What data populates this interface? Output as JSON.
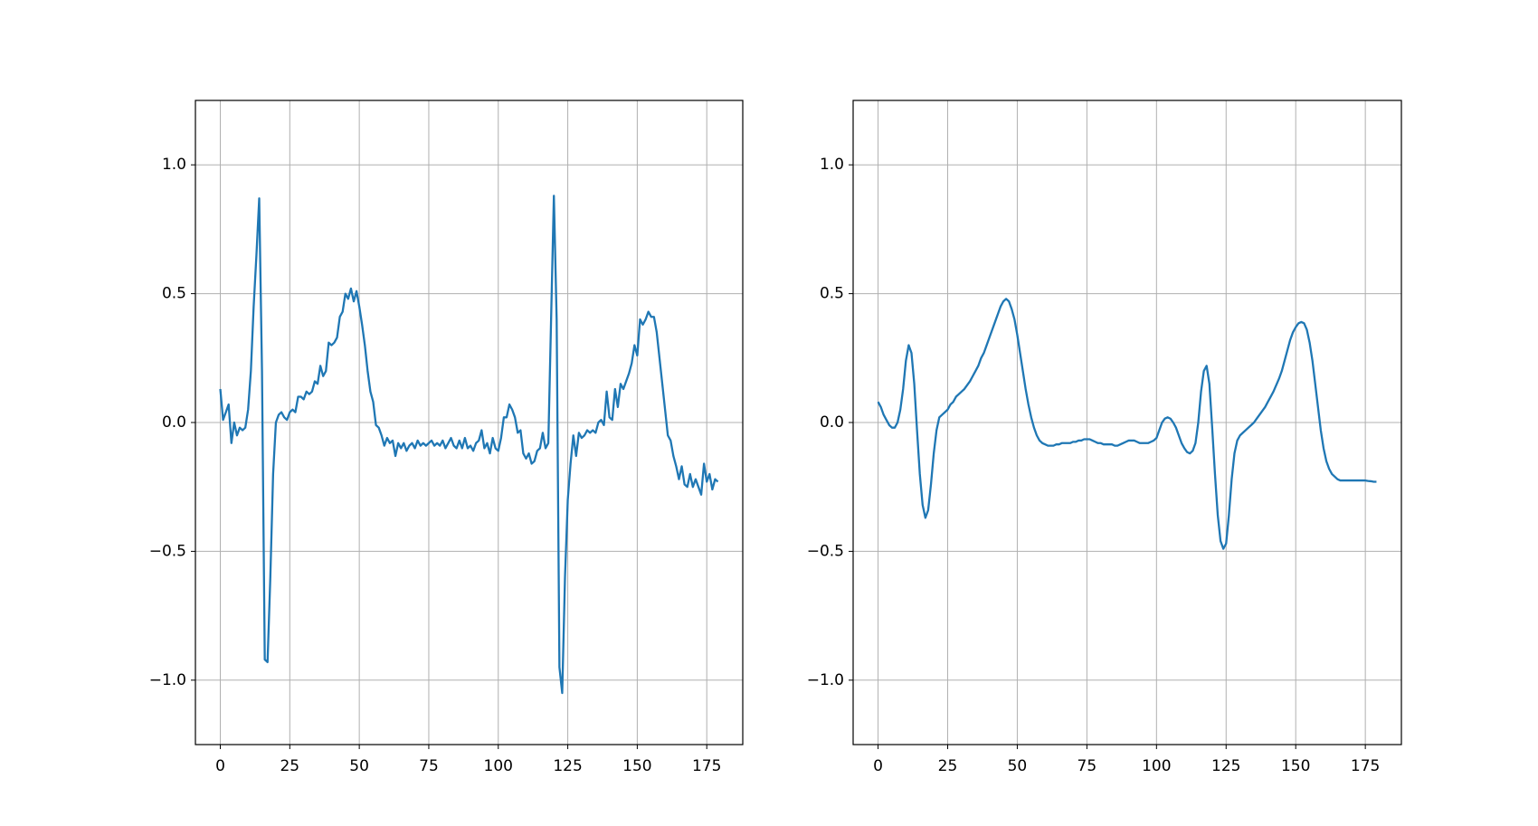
{
  "chart_data": [
    {
      "type": "line",
      "grid": true,
      "xlim": [
        -8.95,
        187.95
      ],
      "ylim": [
        -1.25,
        1.25
      ],
      "xticks": [
        0,
        25,
        50,
        75,
        100,
        125,
        150,
        175
      ],
      "yticks": [
        {
          "value": -1.0,
          "label": "−1.0"
        },
        {
          "value": -0.5,
          "label": "−0.5"
        },
        {
          "value": 0.0,
          "label": "0.0"
        },
        0.5,
        {
          "value": 1.0,
          "label": "1.0"
        }
      ],
      "x": [
        0,
        1,
        2,
        3,
        4,
        5,
        6,
        7,
        8,
        9,
        10,
        11,
        12,
        13,
        14,
        15,
        16,
        17,
        18,
        19,
        20,
        21,
        22,
        23,
        24,
        25,
        26,
        27,
        28,
        29,
        30,
        31,
        32,
        33,
        34,
        35,
        36,
        37,
        38,
        39,
        40,
        41,
        42,
        43,
        44,
        45,
        46,
        47,
        48,
        49,
        50,
        51,
        52,
        53,
        54,
        55,
        56,
        57,
        58,
        59,
        60,
        61,
        62,
        63,
        64,
        65,
        66,
        67,
        68,
        69,
        70,
        71,
        72,
        73,
        74,
        75,
        76,
        77,
        78,
        79,
        80,
        81,
        82,
        83,
        84,
        85,
        86,
        87,
        88,
        89,
        90,
        91,
        92,
        93,
        94,
        95,
        96,
        97,
        98,
        99,
        100,
        101,
        102,
        103,
        104,
        105,
        106,
        107,
        108,
        109,
        110,
        111,
        112,
        113,
        114,
        115,
        116,
        117,
        118,
        119,
        120,
        121,
        122,
        123,
        124,
        125,
        126,
        127,
        128,
        129,
        130,
        131,
        132,
        133,
        134,
        135,
        136,
        137,
        138,
        139,
        140,
        141,
        142,
        143,
        144,
        145,
        146,
        147,
        148,
        149,
        150,
        151,
        152,
        153,
        154,
        155,
        156,
        157,
        158,
        159,
        160,
        161,
        162,
        163,
        164,
        165,
        166,
        167,
        168,
        169,
        170,
        171,
        172,
        173,
        174,
        175,
        176,
        177,
        178,
        179
      ],
      "series": [
        {
          "color": "#1f77b4",
          "values": [
            0.13,
            0.01,
            0.04,
            0.07,
            -0.08,
            0.0,
            -0.05,
            -0.02,
            -0.03,
            -0.02,
            0.05,
            0.2,
            0.45,
            0.65,
            0.87,
            0.2,
            -0.92,
            -0.93,
            -0.6,
            -0.2,
            0.0,
            0.03,
            0.04,
            0.02,
            0.01,
            0.04,
            0.05,
            0.04,
            0.1,
            0.1,
            0.09,
            0.12,
            0.11,
            0.12,
            0.16,
            0.15,
            0.22,
            0.18,
            0.2,
            0.31,
            0.3,
            0.31,
            0.33,
            0.41,
            0.43,
            0.5,
            0.48,
            0.52,
            0.47,
            0.51,
            0.45,
            0.38,
            0.3,
            0.2,
            0.12,
            0.08,
            -0.01,
            -0.02,
            -0.05,
            -0.09,
            -0.06,
            -0.08,
            -0.07,
            -0.13,
            -0.08,
            -0.1,
            -0.08,
            -0.11,
            -0.09,
            -0.08,
            -0.1,
            -0.07,
            -0.09,
            -0.08,
            -0.09,
            -0.08,
            -0.07,
            -0.09,
            -0.08,
            -0.09,
            -0.07,
            -0.1,
            -0.08,
            -0.06,
            -0.09,
            -0.1,
            -0.07,
            -0.1,
            -0.06,
            -0.1,
            -0.09,
            -0.11,
            -0.08,
            -0.07,
            -0.03,
            -0.1,
            -0.08,
            -0.12,
            -0.06,
            -0.1,
            -0.11,
            -0.06,
            0.02,
            0.02,
            0.07,
            0.05,
            0.02,
            -0.04,
            -0.03,
            -0.12,
            -0.14,
            -0.12,
            -0.16,
            -0.15,
            -0.11,
            -0.1,
            -0.04,
            -0.1,
            -0.08,
            0.4,
            0.88,
            0.4,
            -0.95,
            -1.05,
            -0.6,
            -0.3,
            -0.16,
            -0.05,
            -0.13,
            -0.04,
            -0.06,
            -0.05,
            -0.03,
            -0.04,
            -0.03,
            -0.04,
            0.0,
            0.01,
            -0.01,
            0.12,
            0.02,
            0.01,
            0.13,
            0.06,
            0.15,
            0.13,
            0.16,
            0.19,
            0.23,
            0.3,
            0.26,
            0.4,
            0.38,
            0.4,
            0.43,
            0.41,
            0.41,
            0.35,
            0.25,
            0.15,
            0.05,
            -0.05,
            -0.07,
            -0.13,
            -0.17,
            -0.22,
            -0.17,
            -0.24,
            -0.25,
            -0.2,
            -0.25,
            -0.22,
            -0.25,
            -0.28,
            -0.16,
            -0.23,
            -0.2,
            -0.26,
            -0.22,
            -0.23
          ]
        }
      ]
    },
    {
      "type": "line",
      "grid": true,
      "xlim": [
        -8.95,
        187.95
      ],
      "ylim": [
        -1.25,
        1.25
      ],
      "xticks": [
        0,
        25,
        50,
        75,
        100,
        125,
        150,
        175
      ],
      "yticks": [
        {
          "value": -1.0,
          "label": "−1.0"
        },
        {
          "value": -0.5,
          "label": "−0.5"
        },
        {
          "value": 0.0,
          "label": "0.0"
        },
        0.5,
        {
          "value": 1.0,
          "label": "1.0"
        }
      ],
      "x": [
        0,
        1,
        2,
        3,
        4,
        5,
        6,
        7,
        8,
        9,
        10,
        11,
        12,
        13,
        14,
        15,
        16,
        17,
        18,
        19,
        20,
        21,
        22,
        23,
        24,
        25,
        26,
        27,
        28,
        29,
        30,
        31,
        32,
        33,
        34,
        35,
        36,
        37,
        38,
        39,
        40,
        41,
        42,
        43,
        44,
        45,
        46,
        47,
        48,
        49,
        50,
        51,
        52,
        53,
        54,
        55,
        56,
        57,
        58,
        59,
        60,
        61,
        62,
        63,
        64,
        65,
        66,
        67,
        68,
        69,
        70,
        71,
        72,
        73,
        74,
        75,
        76,
        77,
        78,
        79,
        80,
        81,
        82,
        83,
        84,
        85,
        86,
        87,
        88,
        89,
        90,
        91,
        92,
        93,
        94,
        95,
        96,
        97,
        98,
        99,
        100,
        101,
        102,
        103,
        104,
        105,
        106,
        107,
        108,
        109,
        110,
        111,
        112,
        113,
        114,
        115,
        116,
        117,
        118,
        119,
        120,
        121,
        122,
        123,
        124,
        125,
        126,
        127,
        128,
        129,
        130,
        131,
        132,
        133,
        134,
        135,
        136,
        137,
        138,
        139,
        140,
        141,
        142,
        143,
        144,
        145,
        146,
        147,
        148,
        149,
        150,
        151,
        152,
        153,
        154,
        155,
        156,
        157,
        158,
        159,
        160,
        161,
        162,
        163,
        164,
        165,
        166,
        167,
        168,
        169,
        170,
        171,
        172,
        173,
        174,
        175,
        176,
        177,
        178,
        179
      ],
      "series": [
        {
          "color": "#1f77b4",
          "values": [
            0.08,
            0.06,
            0.03,
            0.01,
            -0.01,
            -0.02,
            -0.02,
            0.0,
            0.05,
            0.13,
            0.24,
            0.3,
            0.27,
            0.15,
            -0.03,
            -0.2,
            -0.32,
            -0.37,
            -0.34,
            -0.24,
            -0.12,
            -0.03,
            0.02,
            0.03,
            0.04,
            0.05,
            0.07,
            0.08,
            0.1,
            0.11,
            0.12,
            0.13,
            0.145,
            0.16,
            0.18,
            0.2,
            0.22,
            0.25,
            0.27,
            0.3,
            0.33,
            0.36,
            0.39,
            0.42,
            0.45,
            0.47,
            0.48,
            0.47,
            0.44,
            0.4,
            0.34,
            0.27,
            0.2,
            0.13,
            0.07,
            0.02,
            -0.02,
            -0.05,
            -0.07,
            -0.08,
            -0.085,
            -0.09,
            -0.09,
            -0.09,
            -0.085,
            -0.085,
            -0.08,
            -0.08,
            -0.08,
            -0.08,
            -0.075,
            -0.075,
            -0.07,
            -0.07,
            -0.065,
            -0.065,
            -0.065,
            -0.07,
            -0.075,
            -0.08,
            -0.08,
            -0.085,
            -0.085,
            -0.085,
            -0.085,
            -0.09,
            -0.09,
            -0.085,
            -0.08,
            -0.075,
            -0.07,
            -0.07,
            -0.07,
            -0.075,
            -0.08,
            -0.08,
            -0.08,
            -0.08,
            -0.075,
            -0.07,
            -0.06,
            -0.03,
            0.0,
            0.015,
            0.02,
            0.015,
            0.0,
            -0.02,
            -0.05,
            -0.08,
            -0.1,
            -0.115,
            -0.12,
            -0.11,
            -0.08,
            0.0,
            0.12,
            0.2,
            0.22,
            0.15,
            -0.02,
            -0.2,
            -0.36,
            -0.46,
            -0.49,
            -0.47,
            -0.36,
            -0.22,
            -0.12,
            -0.07,
            -0.05,
            -0.04,
            -0.03,
            -0.02,
            -0.01,
            0.0,
            0.015,
            0.03,
            0.045,
            0.06,
            0.08,
            0.1,
            0.12,
            0.145,
            0.17,
            0.2,
            0.24,
            0.28,
            0.32,
            0.35,
            0.37,
            0.385,
            0.39,
            0.385,
            0.36,
            0.31,
            0.24,
            0.15,
            0.06,
            -0.03,
            -0.1,
            -0.15,
            -0.18,
            -0.2,
            -0.21,
            -0.22,
            -0.225,
            -0.225,
            -0.225,
            -0.225,
            -0.225,
            -0.225,
            -0.225,
            -0.225,
            -0.225,
            -0.225,
            -0.227,
            -0.228,
            -0.23,
            -0.23
          ]
        }
      ]
    }
  ]
}
